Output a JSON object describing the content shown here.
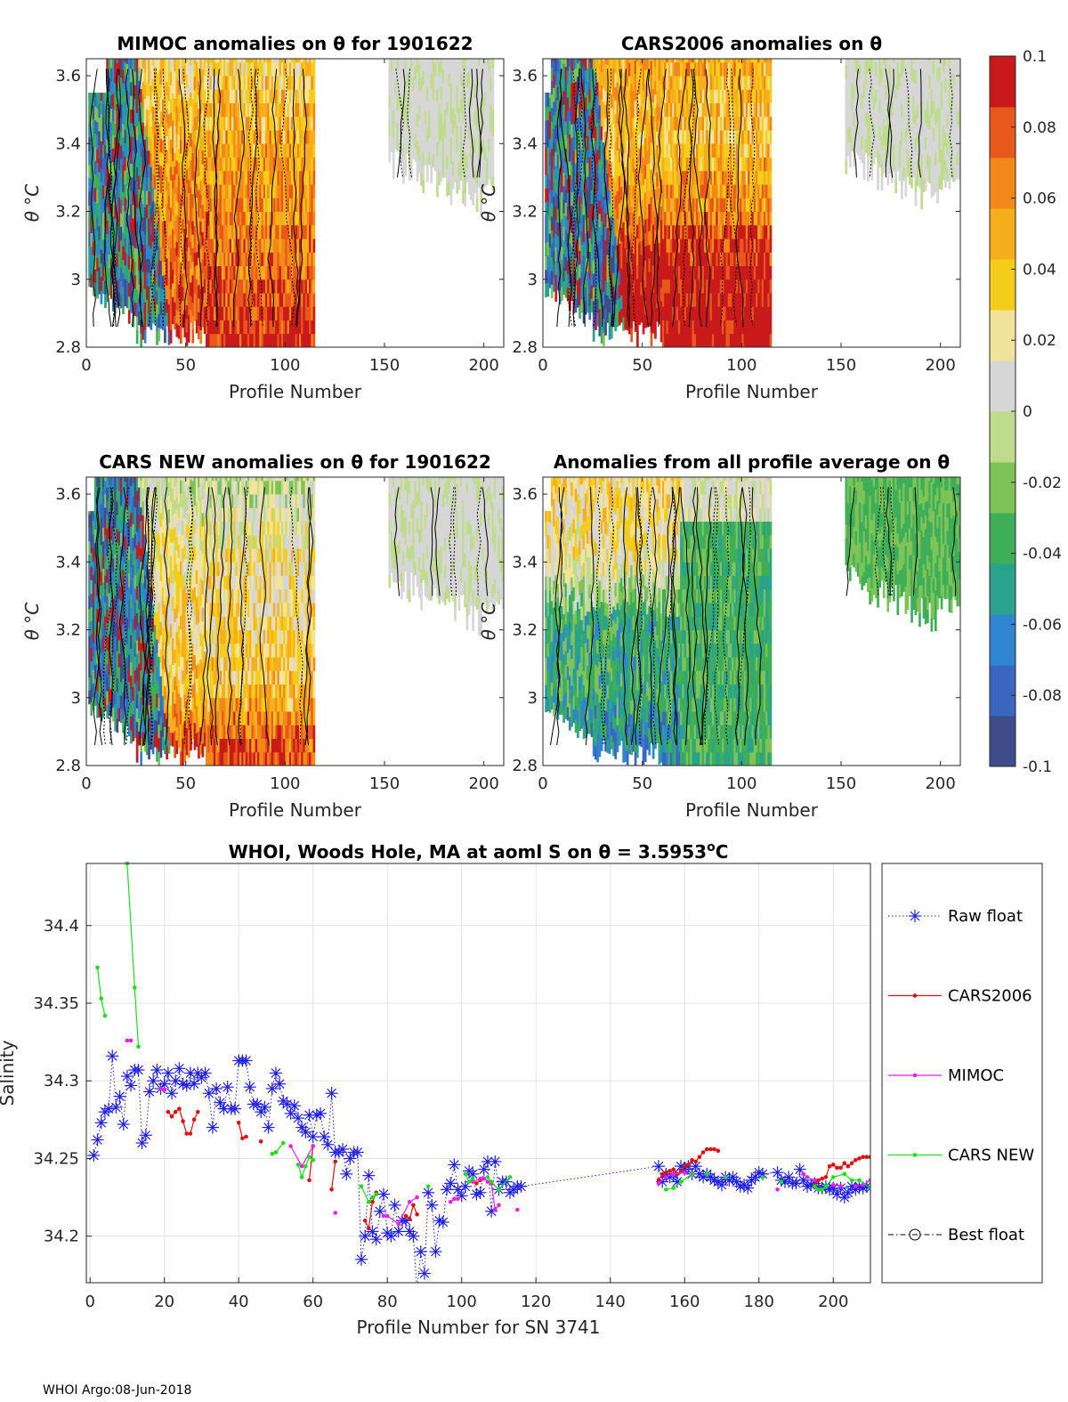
{
  "figure": {
    "footer": "WHOI Argo:08-Jun-2018"
  },
  "colors": {
    "colormap": [
      "#3e4c8a",
      "#3a66c0",
      "#2f86cf",
      "#2aa38c",
      "#3eae58",
      "#7dc357",
      "#bfdc8d",
      "#d6d6d6",
      "#f2e39a",
      "#f4cd1a",
      "#f7ae1c",
      "#f28818",
      "#e8581a",
      "#c81a1a"
    ],
    "raw_float": "#1f1fe6",
    "cars2006": "#e01010",
    "mimoc": "#e820e8",
    "cars_new": "#18e018",
    "best_float": "#000000"
  },
  "colorbar": {
    "range": [
      -0.1,
      0.1
    ],
    "tick_labels": [
      "0.1",
      "0.08",
      "0.06",
      "0.04",
      "0.02",
      "0",
      "-0.02",
      "-0.04",
      "-0.06",
      "-0.08",
      "-0.1"
    ]
  },
  "chart_data": [
    {
      "type": "heatmap",
      "panel": "mimoc",
      "title": "MIMOC anomalies on θ  for 1901622",
      "xlabel": "Profile Number",
      "ylabel": "θ °C",
      "xlim": [
        0,
        210
      ],
      "ylim": [
        2.8,
        3.65
      ],
      "xticks": [
        0,
        50,
        100,
        150,
        200
      ],
      "yticks": [
        2.8,
        3,
        3.2,
        3.4,
        3.6
      ],
      "data_extent": [
        [
          1,
          115
        ],
        [
          152,
          205
        ]
      ],
      "row_anomaly_profile": [
        {
          "theta": 3.6,
          "anomaly": 0.03
        },
        {
          "theta": 3.4,
          "anomaly": 0.05
        },
        {
          "theta": 3.2,
          "anomaly": 0.06
        },
        {
          "theta": 3.0,
          "anomaly": 0.07
        },
        {
          "theta": 2.85,
          "anomaly": 0.09
        }
      ],
      "left_segment_mean_anomaly": -0.1
    },
    {
      "type": "heatmap",
      "panel": "cars2006",
      "title": "CARS2006 anomalies on θ",
      "xlabel": "Profile Number",
      "ylabel": "θ °C",
      "xlim": [
        0,
        210
      ],
      "ylim": [
        2.8,
        3.65
      ],
      "xticks": [
        0,
        50,
        100,
        150,
        200
      ],
      "yticks": [
        2.8,
        3,
        3.2,
        3.4,
        3.6
      ],
      "data_extent": [
        [
          1,
          115
        ],
        [
          152,
          210
        ]
      ],
      "row_anomaly_profile": [
        {
          "theta": 3.6,
          "anomaly": 0.05
        },
        {
          "theta": 3.4,
          "anomaly": 0.04
        },
        {
          "theta": 3.2,
          "anomaly": 0.06
        },
        {
          "theta": 3.0,
          "anomaly": 0.1
        },
        {
          "theta": 2.85,
          "anomaly": 0.1
        }
      ],
      "left_segment_mean_anomaly": -0.1
    },
    {
      "type": "heatmap",
      "panel": "cars_new",
      "title": "CARS NEW anomalies on θ for 1901622",
      "xlabel": "Profile Number",
      "ylabel": "θ °C",
      "xlim": [
        0,
        210
      ],
      "ylim": [
        2.8,
        3.65
      ],
      "xticks": [
        0,
        50,
        100,
        150,
        200
      ],
      "yticks": [
        2.8,
        3,
        3.2,
        3.4,
        3.6
      ],
      "data_extent": [
        [
          1,
          115
        ],
        [
          152,
          210
        ]
      ],
      "row_anomaly_profile": [
        {
          "theta": 3.6,
          "anomaly": 0.0
        },
        {
          "theta": 3.4,
          "anomaly": 0.02
        },
        {
          "theta": 3.2,
          "anomaly": 0.03
        },
        {
          "theta": 3.0,
          "anomaly": 0.04
        },
        {
          "theta": 2.85,
          "anomaly": 0.08
        }
      ],
      "left_segment_mean_anomaly": -0.1
    },
    {
      "type": "heatmap",
      "panel": "all_profile_average",
      "title": "Anomalies from all profile average on θ",
      "xlabel": "Profile Number",
      "ylabel": "θ °C",
      "xlim": [
        0,
        210
      ],
      "ylim": [
        2.8,
        3.65
      ],
      "xticks": [
        0,
        50,
        100,
        150,
        200
      ],
      "yticks": [
        2.8,
        3,
        3.2,
        3.4,
        3.6
      ],
      "data_extent": [
        [
          1,
          115
        ],
        [
          152,
          210
        ]
      ],
      "row_anomaly_profile": [
        {
          "theta": 3.6,
          "anomaly": 0.03
        },
        {
          "theta": 3.4,
          "anomaly": 0.02
        },
        {
          "theta": 3.2,
          "anomaly": -0.04
        },
        {
          "theta": 3.0,
          "anomaly": -0.04
        },
        {
          "theta": 2.85,
          "anomaly": -0.06
        }
      ],
      "right_segment_mean_anomaly": -0.03
    },
    {
      "type": "line",
      "panel": "salinity",
      "title": "WHOI, Woods Hole, MA at aoml S on θ = 3.5953",
      "title_superscript": "o",
      "title_suffix": "C",
      "xlabel": "Profile Number for SN 3741",
      "ylabel": "Salinity",
      "xlim": [
        -1,
        210
      ],
      "ylim": [
        34.17,
        34.44
      ],
      "xticks": [
        0,
        20,
        40,
        60,
        80,
        100,
        120,
        140,
        160,
        180,
        200
      ],
      "yticks": [
        34.2,
        34.25,
        34.3,
        34.35,
        34.4
      ],
      "ytick_labels": [
        "34.2",
        "34.25",
        "34.3",
        "34.35",
        "34.4"
      ],
      "legend_position": "right",
      "series": [
        {
          "name": "Raw float",
          "style": "dotted-star",
          "x": [
            1,
            2,
            3,
            4,
            5,
            6,
            7,
            8,
            9,
            10,
            11,
            12,
            13,
            14,
            15,
            16,
            17,
            18,
            19,
            20,
            21,
            22,
            23,
            24,
            25,
            26,
            27,
            28,
            29,
            30,
            31,
            32,
            33,
            34,
            35,
            36,
            37,
            38,
            39,
            40,
            41,
            42,
            43,
            44,
            45,
            46,
            47,
            48,
            49,
            50,
            51,
            52,
            53,
            54,
            55,
            56,
            57,
            58,
            59,
            60,
            61,
            62,
            63,
            64,
            65,
            66,
            67,
            68,
            69,
            70,
            71,
            72,
            73,
            74,
            75,
            76,
            77,
            78,
            79,
            80,
            81,
            82,
            83,
            84,
            85,
            86,
            87,
            88,
            89,
            90,
            91,
            92,
            93,
            94,
            95,
            96,
            97,
            98,
            99,
            100,
            101,
            102,
            103,
            104,
            105,
            106,
            107,
            108,
            109,
            110,
            111,
            112,
            113,
            114,
            115,
            116,
            153,
            154,
            155,
            156,
            157,
            158,
            159,
            160,
            161,
            162,
            163,
            164,
            165,
            166,
            167,
            168,
            169,
            170,
            171,
            172,
            173,
            174,
            175,
            176,
            177,
            178,
            179,
            180,
            181,
            185,
            186,
            187,
            188,
            189,
            190,
            191,
            192,
            193,
            194,
            195,
            196,
            197,
            198,
            199,
            200,
            201,
            202,
            203,
            204,
            205,
            206,
            207,
            208,
            209,
            210
          ],
          "y": [
            34.252,
            34.262,
            34.273,
            34.28,
            34.282,
            34.316,
            34.283,
            34.29,
            34.272,
            34.303,
            34.297,
            34.307,
            34.307,
            34.26,
            34.265,
            34.293,
            34.3,
            34.307,
            34.295,
            34.298,
            34.305,
            34.292,
            34.3,
            34.308,
            34.298,
            34.297,
            34.305,
            34.298,
            34.305,
            34.302,
            34.305,
            34.292,
            34.27,
            34.295,
            34.286,
            34.282,
            34.296,
            34.282,
            34.282,
            34.313,
            34.313,
            34.313,
            34.296,
            34.285,
            34.285,
            34.28,
            34.283,
            34.27,
            34.295,
            34.305,
            34.298,
            34.287,
            34.285,
            34.279,
            34.284,
            34.276,
            34.27,
            34.267,
            34.278,
            34.264,
            34.278,
            34.279,
            34.264,
            34.259,
            34.292,
            34.254,
            34.254,
            34.256,
            34.24,
            34.25,
            34.254,
            34.254,
            34.185,
            34.2,
            34.239,
            34.203,
            34.198,
            34.216,
            34.227,
            34.202,
            34.2,
            34.22,
            34.203,
            34.21,
            34.21,
            34.203,
            34.2,
            34.165,
            34.19,
            34.176,
            34.228,
            34.22,
            34.19,
            34.21,
            34.209,
            34.23,
            34.234,
            34.246,
            34.23,
            34.226,
            34.232,
            34.242,
            34.24,
            34.227,
            34.228,
            34.243,
            34.248,
            34.216,
            34.248,
            34.23,
            34.235,
            34.235,
            34.228,
            34.23,
            34.232,
            34.232,
            34.245,
            34.235,
            34.24,
            34.238,
            34.24,
            34.235,
            34.245,
            34.243,
            34.245,
            34.24,
            34.245,
            34.24,
            34.238,
            34.24,
            34.238,
            34.236,
            34.235,
            34.233,
            34.238,
            34.236,
            34.238,
            34.235,
            34.232,
            34.233,
            34.231,
            34.236,
            34.238,
            34.241,
            34.24,
            34.241,
            34.236,
            34.235,
            34.238,
            34.234,
            34.234,
            34.243,
            34.236,
            34.232,
            34.233,
            34.234,
            34.231,
            34.231,
            34.232,
            34.23,
            34.231,
            34.227,
            34.231,
            34.225,
            34.228,
            34.232,
            34.23,
            34.232,
            34.231,
            34.232,
            34.231
          ]
        },
        {
          "name": "CARS2006",
          "style": "solid-dot",
          "x": [
            21,
            22,
            23,
            24,
            25,
            26,
            27,
            28,
            29,
            40,
            41,
            42,
            46,
            59,
            60,
            65,
            66,
            74,
            75,
            76,
            77,
            85,
            86,
            87,
            88,
            104,
            105,
            153,
            154,
            155,
            156,
            157,
            158,
            159,
            160,
            161,
            162,
            163,
            164,
            165,
            166,
            167,
            168,
            169,
            195,
            196,
            197,
            198,
            199,
            200,
            201,
            202,
            203,
            204,
            205,
            206,
            207,
            208,
            209,
            210
          ],
          "y": [
            34.28,
            34.277,
            34.28,
            34.282,
            34.274,
            34.266,
            34.266,
            34.275,
            34.28,
            34.273,
            34.263,
            34.264,
            34.261,
            34.236,
            34.258,
            34.23,
            34.248,
            34.21,
            34.205,
            34.222,
            34.228,
            34.213,
            34.211,
            34.22,
            34.214,
            34.234,
            34.236,
            34.236,
            34.24,
            34.241,
            34.242,
            34.243,
            34.24,
            34.242,
            34.245,
            34.246,
            34.249,
            34.248,
            34.251,
            34.254,
            34.256,
            34.256,
            34.256,
            34.255,
            34.233,
            34.236,
            34.237,
            34.238,
            34.245,
            34.246,
            34.244,
            34.244,
            34.247,
            34.245,
            34.247,
            34.249,
            34.25,
            34.251,
            34.251,
            34.251
          ]
        },
        {
          "name": "MIMOC",
          "style": "solid-dot",
          "x": [
            10,
            11,
            19,
            20,
            54,
            57,
            60,
            66,
            79,
            80,
            83,
            86,
            88,
            97,
            98,
            99,
            103,
            105,
            106,
            107,
            108,
            109,
            110,
            115,
            153,
            155,
            157,
            160,
            162,
            185,
            192,
            193,
            195,
            200,
            202,
            206,
            208,
            210
          ],
          "y": [
            34.326,
            34.326,
            34.295,
            34.294,
            34.258,
            34.245,
            34.258,
            34.215,
            34.213,
            34.213,
            34.208,
            34.222,
            34.225,
            34.222,
            34.224,
            34.224,
            34.235,
            34.237,
            34.237,
            34.235,
            34.234,
            34.217,
            34.22,
            34.217,
            34.234,
            34.238,
            34.24,
            34.241,
            34.24,
            34.23,
            34.24,
            34.238,
            34.236,
            34.233,
            34.232,
            34.232,
            34.233,
            34.236
          ]
        },
        {
          "name": "CARS NEW",
          "style": "solid-dot",
          "x": [
            2,
            3,
            4,
            10,
            12,
            13,
            49,
            50,
            52,
            56,
            57,
            58,
            59,
            60,
            73,
            75,
            76,
            77,
            91,
            101,
            102,
            103,
            107,
            108,
            110,
            113,
            155,
            157,
            159,
            162,
            166,
            171,
            181,
            186,
            195,
            196,
            197,
            198,
            200,
            203,
            205,
            207,
            210
          ],
          "y": [
            34.373,
            34.353,
            34.342,
            34.44,
            34.36,
            34.322,
            34.253,
            34.254,
            34.26,
            34.246,
            34.238,
            34.245,
            34.251,
            34.249,
            34.232,
            34.222,
            34.225,
            34.227,
            34.232,
            34.24,
            34.235,
            34.237,
            34.238,
            34.235,
            34.23,
            34.238,
            34.23,
            34.231,
            34.235,
            34.24,
            34.24,
            34.238,
            34.238,
            34.235,
            34.232,
            34.23,
            34.23,
            34.232,
            34.238,
            34.24,
            34.236,
            34.236,
            34.231
          ]
        },
        {
          "name": "Best float",
          "style": "dash-dot-circle",
          "x": [],
          "y": []
        }
      ]
    }
  ]
}
